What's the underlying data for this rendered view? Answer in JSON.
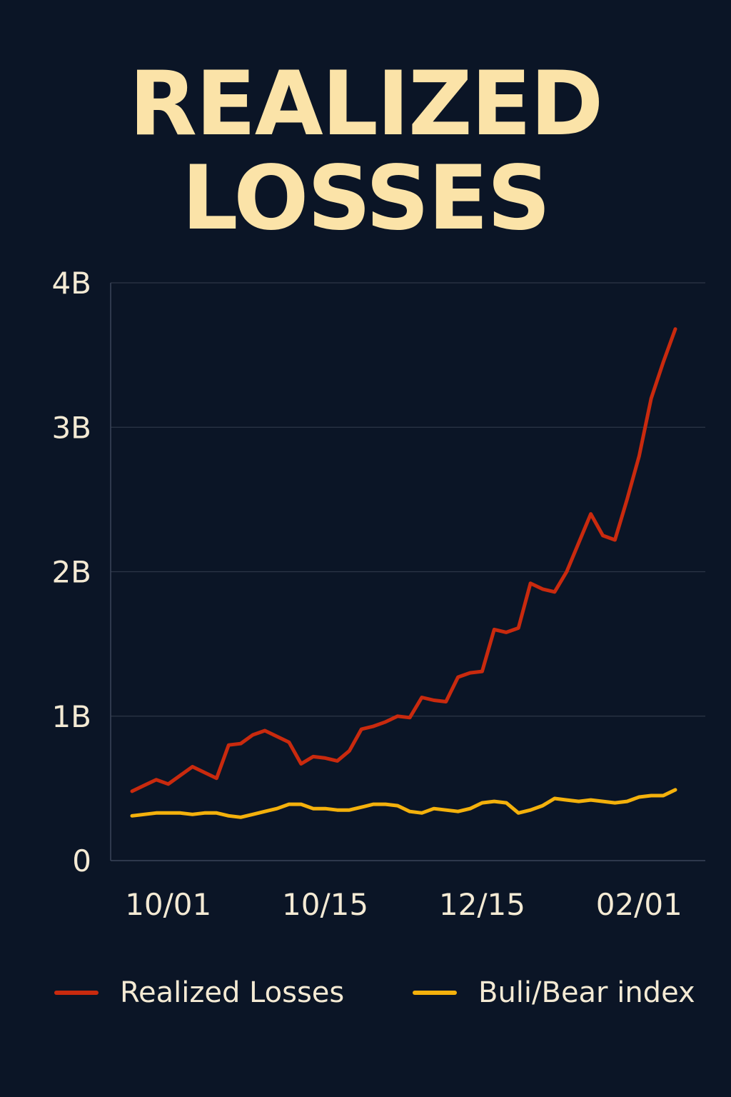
{
  "chart_data": {
    "type": "line",
    "title": "REALIZED LOSSES",
    "title_lines": [
      "REALIZED",
      "LOSSES"
    ],
    "xlabel": "",
    "ylabel": "",
    "ylim": [
      0,
      4000000000
    ],
    "y_ticks": [
      {
        "value": 0,
        "label": "0"
      },
      {
        "value": 1000000000,
        "label": "1B"
      },
      {
        "value": 2000000000,
        "label": "2B"
      },
      {
        "value": 3000000000,
        "label": "3B"
      },
      {
        "value": 4000000000,
        "label": "4B"
      }
    ],
    "x_ticks": [
      {
        "index": 3,
        "label": "10/01"
      },
      {
        "index": 16,
        "label": "10/15"
      },
      {
        "index": 29,
        "label": "12/15"
      },
      {
        "index": 42,
        "label": "02/01"
      }
    ],
    "grid": true,
    "legend_position": "bottom",
    "series": [
      {
        "name": "Realized Losses",
        "color": "#c92a0e",
        "values": [
          480000000,
          520000000,
          560000000,
          530000000,
          590000000,
          650000000,
          610000000,
          570000000,
          800000000,
          810000000,
          870000000,
          900000000,
          860000000,
          820000000,
          670000000,
          720000000,
          710000000,
          690000000,
          760000000,
          910000000,
          930000000,
          960000000,
          1000000000,
          990000000,
          1130000000,
          1110000000,
          1100000000,
          1270000000,
          1300000000,
          1310000000,
          1600000000,
          1580000000,
          1610000000,
          1920000000,
          1880000000,
          1860000000,
          2000000000,
          2200000000,
          2400000000,
          2250000000,
          2220000000,
          2500000000,
          2800000000,
          3200000000,
          3450000000,
          3680000000
        ]
      },
      {
        "name": "Buli/Bear index",
        "color": "#f4b10c",
        "values": [
          310000000,
          320000000,
          330000000,
          330000000,
          330000000,
          320000000,
          330000000,
          330000000,
          310000000,
          300000000,
          320000000,
          340000000,
          360000000,
          390000000,
          390000000,
          360000000,
          360000000,
          350000000,
          350000000,
          370000000,
          390000000,
          390000000,
          380000000,
          340000000,
          330000000,
          360000000,
          350000000,
          340000000,
          360000000,
          400000000,
          410000000,
          400000000,
          330000000,
          350000000,
          380000000,
          430000000,
          420000000,
          410000000,
          420000000,
          410000000,
          400000000,
          410000000,
          440000000,
          450000000,
          450000000,
          490000000
        ]
      }
    ]
  }
}
